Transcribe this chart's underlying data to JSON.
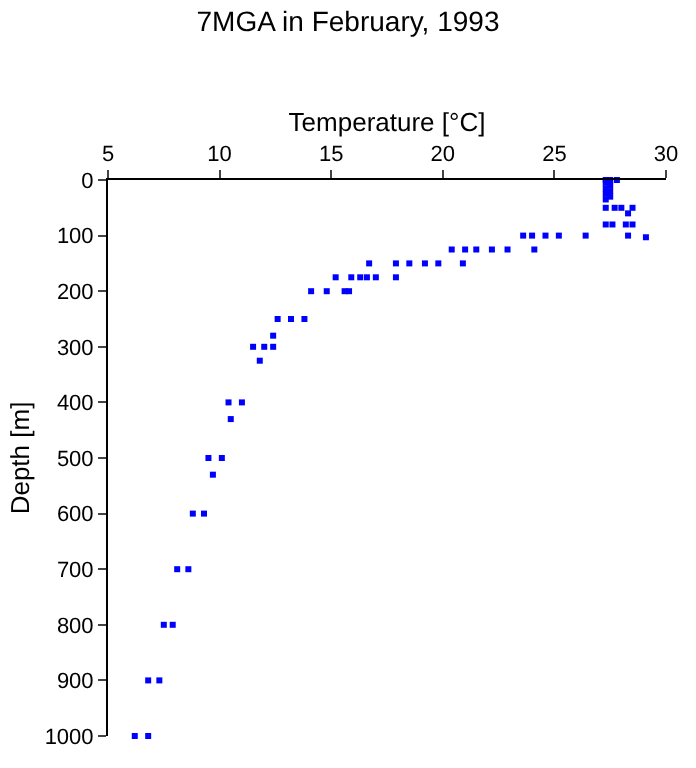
{
  "chart_data": {
    "type": "scatter",
    "title": "7MGA in February, 1993",
    "xlabel": "Temperature [°C]",
    "ylabel": "Depth [m]",
    "x": [
      27.3,
      27.5,
      27.8,
      27.3,
      27.5,
      27.3,
      27.5,
      27.3,
      27.5,
      27.3,
      27.3,
      27.7,
      28.0,
      28.5,
      28.3,
      27.3,
      27.6,
      28.2,
      28.5,
      28.3,
      29.1,
      23.6,
      24.0,
      24.6,
      25.2,
      26.4,
      20.4,
      21.0,
      21.5,
      22.2,
      22.9,
      24.1,
      16.7,
      17.9,
      18.5,
      19.2,
      19.8,
      20.9,
      15.2,
      15.9,
      16.3,
      16.6,
      17.0,
      17.9,
      14.1,
      14.8,
      15.6,
      15.8,
      12.6,
      13.2,
      13.8,
      12.4,
      11.5,
      12.0,
      12.4,
      11.8,
      10.4,
      11.0,
      10.5,
      9.5,
      10.1,
      9.7,
      8.8,
      9.3,
      8.1,
      8.6,
      7.5,
      7.9,
      6.8,
      7.3,
      6.2,
      6.8
    ],
    "values": [
      0,
      0,
      0,
      5,
      10,
      15,
      20,
      25,
      30,
      35,
      50,
      50,
      50,
      50,
      60,
      80,
      80,
      80,
      80,
      100,
      103,
      100,
      100,
      100,
      100,
      100,
      125,
      125,
      125,
      125,
      125,
      125,
      150,
      150,
      150,
      150,
      150,
      150,
      175,
      175,
      175,
      175,
      175,
      175,
      200,
      200,
      200,
      200,
      250,
      250,
      250,
      280,
      300,
      300,
      300,
      325,
      400,
      400,
      430,
      500,
      500,
      530,
      600,
      600,
      700,
      700,
      800,
      800,
      900,
      900,
      1000,
      1000
    ],
    "color": "#0000ff",
    "marker": "square",
    "xlim": [
      5,
      30
    ],
    "xticks": [
      5,
      10,
      15,
      20,
      25,
      30
    ],
    "ylim": [
      1000,
      0
    ],
    "yticks": [
      0,
      100,
      200,
      300,
      400,
      500,
      600,
      700,
      800,
      900,
      1000
    ],
    "legend": false
  }
}
